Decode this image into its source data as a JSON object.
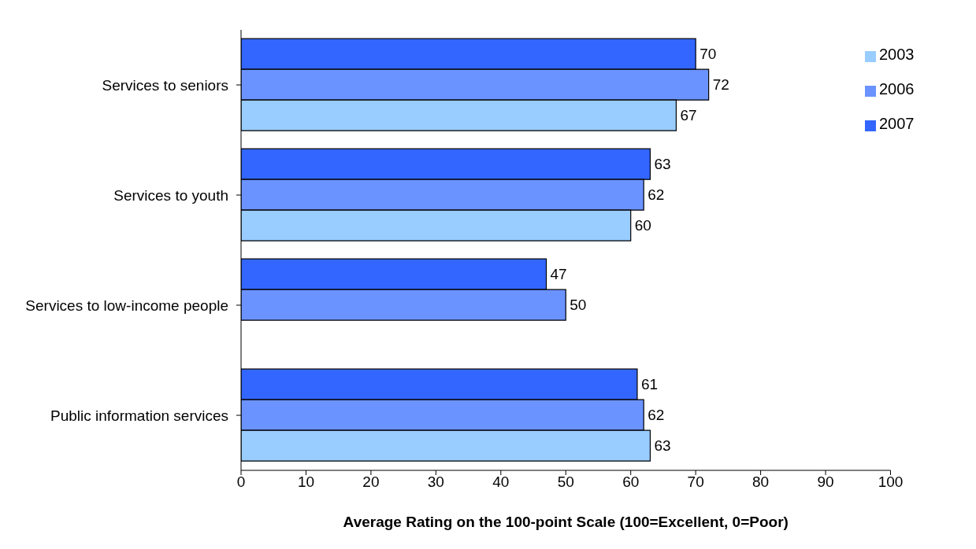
{
  "chart_data": {
    "type": "bar",
    "orientation": "horizontal",
    "xlabel": "Average Rating on the 100-point Scale (100=Excellent, 0=Poor)",
    "categories": [
      "Services to seniors",
      "Services to youth",
      "Services to low-income people",
      "Public information services"
    ],
    "series": [
      {
        "name": "2007",
        "color": "#3366ff",
        "values": [
          70,
          63,
          47,
          61
        ]
      },
      {
        "name": "2006",
        "color": "#6b93ff",
        "values": [
          72,
          62,
          50,
          62
        ]
      },
      {
        "name": "2003",
        "color": "#99ccff",
        "values": [
          67,
          60,
          null,
          63
        ]
      }
    ],
    "xlim": [
      0,
      100
    ],
    "xticks": [
      0,
      10,
      20,
      30,
      40,
      50,
      60,
      70,
      80,
      90,
      100
    ],
    "data_labels": true,
    "legend": "top right",
    "grid": false
  }
}
